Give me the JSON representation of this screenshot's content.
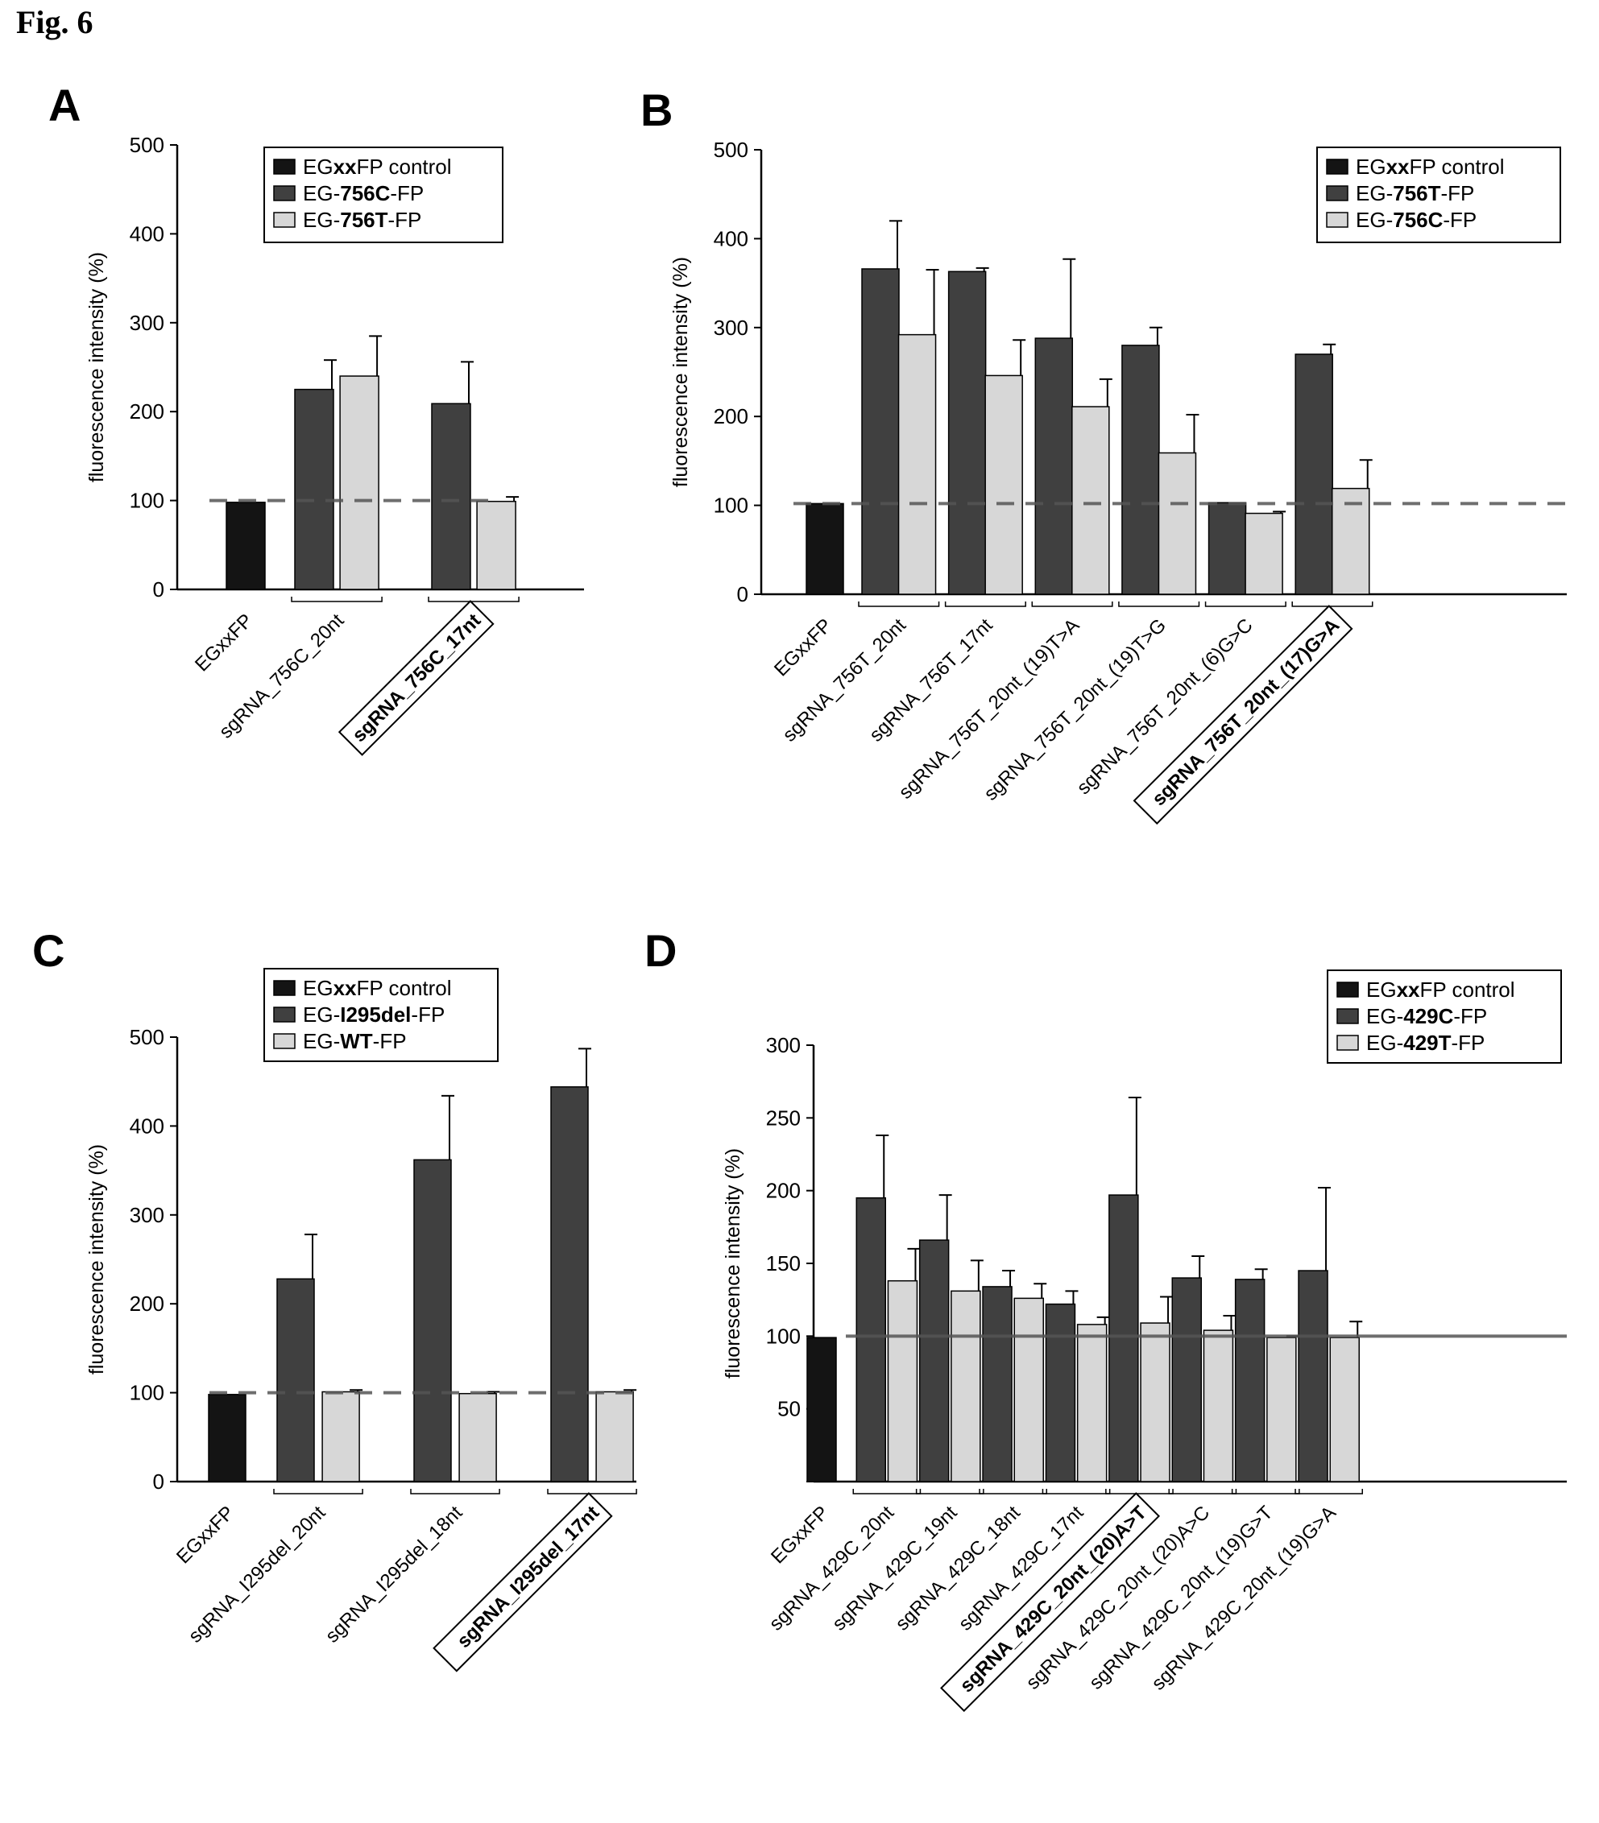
{
  "figure_label": "Fig. 6",
  "colors": {
    "black": "#141414",
    "dark": "#404040",
    "light": "#d7d7d7",
    "dash": "#555555"
  },
  "chart_data": [
    {
      "panel": "A",
      "type": "bar",
      "ylabel": "fluorescence intensity (%)",
      "ylim": [
        0,
        500
      ],
      "yticks": [
        0,
        100,
        200,
        300,
        400,
        500
      ],
      "reference_line": 100,
      "legend": [
        {
          "label_parts": [
            {
              "t": "EG",
              "b": false
            },
            {
              "t": "xx",
              "b": true
            },
            {
              "t": "FP control",
              "b": false
            }
          ],
          "color": "black"
        },
        {
          "label_parts": [
            {
              "t": "EG-",
              "b": false
            },
            {
              "t": "756C",
              "b": true
            },
            {
              "t": "-FP",
              "b": false
            }
          ],
          "color": "dark"
        },
        {
          "label_parts": [
            {
              "t": "EG-",
              "b": false
            },
            {
              "t": "756T",
              "b": true
            },
            {
              "t": "-FP",
              "b": false
            }
          ],
          "color": "light"
        }
      ],
      "groups": [
        {
          "label": "EGxxFP",
          "boxed": false,
          "bars": [
            {
              "color": "black",
              "value": 98,
              "err": 0
            }
          ]
        },
        {
          "label": "sgRNA_756C_20nt",
          "boxed": false,
          "bars": [
            {
              "color": "dark",
              "value": 225,
              "err": 33
            },
            {
              "color": "light",
              "value": 240,
              "err": 45
            }
          ]
        },
        {
          "label": "sgRNA_756C_17nt",
          "boxed": true,
          "bars": [
            {
              "color": "dark",
              "value": 209,
              "err": 47
            },
            {
              "color": "light",
              "value": 99,
              "err": 5
            }
          ]
        }
      ]
    },
    {
      "panel": "B",
      "type": "bar",
      "ylabel": "fluorescence intensity (%)",
      "ylim": [
        0,
        500
      ],
      "yticks": [
        0,
        100,
        200,
        300,
        400,
        500
      ],
      "reference_line": 102,
      "legend": [
        {
          "label_parts": [
            {
              "t": "EG",
              "b": false
            },
            {
              "t": "xx",
              "b": true
            },
            {
              "t": "FP control",
              "b": false
            }
          ],
          "color": "black"
        },
        {
          "label_parts": [
            {
              "t": "EG-",
              "b": false
            },
            {
              "t": "756T",
              "b": true
            },
            {
              "t": "-FP",
              "b": false
            }
          ],
          "color": "dark"
        },
        {
          "label_parts": [
            {
              "t": "EG-",
              "b": false
            },
            {
              "t": "756C",
              "b": true
            },
            {
              "t": "-FP",
              "b": false
            }
          ],
          "color": "light"
        }
      ],
      "groups": [
        {
          "label": "EGxxFP",
          "boxed": false,
          "bars": [
            {
              "color": "black",
              "value": 102,
              "err": 0
            }
          ]
        },
        {
          "label": "sgRNA_756T_20nt",
          "boxed": false,
          "bars": [
            {
              "color": "dark",
              "value": 366,
              "err": 54
            },
            {
              "color": "light",
              "value": 292,
              "err": 73
            }
          ]
        },
        {
          "label": "sgRNA_756T_17nt",
          "boxed": false,
          "bars": [
            {
              "color": "dark",
              "value": 363,
              "err": 4
            },
            {
              "color": "light",
              "value": 246,
              "err": 40
            }
          ]
        },
        {
          "label": "sgRNA_756T_20nt_(19)T>A",
          "boxed": false,
          "bars": [
            {
              "color": "dark",
              "value": 288,
              "err": 89
            },
            {
              "color": "light",
              "value": 211,
              "err": 31
            }
          ]
        },
        {
          "label": "sgRNA_756T_20nt_(19)T>G",
          "boxed": false,
          "bars": [
            {
              "color": "dark",
              "value": 280,
              "err": 20
            },
            {
              "color": "light",
              "value": 159,
              "err": 43
            }
          ]
        },
        {
          "label": "sgRNA_756T_20nt_(6)G>C",
          "boxed": false,
          "bars": [
            {
              "color": "dark",
              "value": 103,
              "err": 0
            },
            {
              "color": "light",
              "value": 91,
              "err": 2
            }
          ]
        },
        {
          "label": "sgRNA_756T_20nt_(17)G>A",
          "boxed": true,
          "bars": [
            {
              "color": "dark",
              "value": 270,
              "err": 11
            },
            {
              "color": "light",
              "value": 119,
              "err": 32
            }
          ]
        }
      ]
    },
    {
      "panel": "C",
      "type": "bar",
      "ylabel": "fluorescence intensity (%)",
      "ylim": [
        0,
        500
      ],
      "yticks": [
        0,
        100,
        200,
        300,
        400,
        500
      ],
      "reference_line": 100,
      "legend": [
        {
          "label_parts": [
            {
              "t": "EG",
              "b": false
            },
            {
              "t": "xx",
              "b": true
            },
            {
              "t": "FP control",
              "b": false
            }
          ],
          "color": "black"
        },
        {
          "label_parts": [
            {
              "t": "EG-",
              "b": false
            },
            {
              "t": "I295del",
              "b": true
            },
            {
              "t": "-FP",
              "b": false
            }
          ],
          "color": "dark"
        },
        {
          "label_parts": [
            {
              "t": "EG-",
              "b": false
            },
            {
              "t": "WT",
              "b": true
            },
            {
              "t": "-FP",
              "b": false
            }
          ],
          "color": "light"
        }
      ],
      "groups": [
        {
          "label": "EGxxFP",
          "boxed": false,
          "bars": [
            {
              "color": "black",
              "value": 98,
              "err": 0
            }
          ]
        },
        {
          "label": "sgRNA_I295del_20nt",
          "boxed": false,
          "bars": [
            {
              "color": "dark",
              "value": 228,
              "err": 50
            },
            {
              "color": "light",
              "value": 101,
              "err": 2
            }
          ]
        },
        {
          "label": "sgRNA_I295del_18nt",
          "boxed": false,
          "bars": [
            {
              "color": "dark",
              "value": 362,
              "err": 72
            },
            {
              "color": "light",
              "value": 99,
              "err": 2
            }
          ]
        },
        {
          "label": "sgRNA_I295del_17nt",
          "boxed": true,
          "bars": [
            {
              "color": "dark",
              "value": 444,
              "err": 43
            },
            {
              "color": "light",
              "value": 101,
              "err": 2
            }
          ]
        }
      ]
    },
    {
      "panel": "D",
      "type": "bar",
      "ylabel": "fluorescence intensity (%)",
      "ylim": [
        0,
        300
      ],
      "yticks": [
        50,
        100,
        150,
        200,
        250,
        300
      ],
      "reference_line": 100,
      "legend": [
        {
          "label_parts": [
            {
              "t": "EG",
              "b": false
            },
            {
              "t": "xx",
              "b": true
            },
            {
              "t": "FP control",
              "b": false
            }
          ],
          "color": "black"
        },
        {
          "label_parts": [
            {
              "t": "EG-",
              "b": false
            },
            {
              "t": "429C",
              "b": true
            },
            {
              "t": "-FP",
              "b": false
            }
          ],
          "color": "dark"
        },
        {
          "label_parts": [
            {
              "t": "EG-",
              "b": false
            },
            {
              "t": "429T",
              "b": true
            },
            {
              "t": "-FP",
              "b": false
            }
          ],
          "color": "light"
        }
      ],
      "groups": [
        {
          "label": "EGxxFP",
          "boxed": false,
          "bars": [
            {
              "color": "black",
              "value": 99,
              "err": 0
            }
          ]
        },
        {
          "label": "sgRNA_429C_20nt",
          "boxed": false,
          "bars": [
            {
              "color": "dark",
              "value": 195,
              "err": 43
            },
            {
              "color": "light",
              "value": 138,
              "err": 22
            }
          ]
        },
        {
          "label": "sgRNA_429C_19nt",
          "boxed": false,
          "bars": [
            {
              "color": "dark",
              "value": 166,
              "err": 31
            },
            {
              "color": "light",
              "value": 131,
              "err": 21
            }
          ]
        },
        {
          "label": "sgRNA_429C_18nt",
          "boxed": false,
          "bars": [
            {
              "color": "dark",
              "value": 134,
              "err": 11
            },
            {
              "color": "light",
              "value": 126,
              "err": 10
            }
          ]
        },
        {
          "label": "sgRNA_429C_17nt",
          "boxed": false,
          "bars": [
            {
              "color": "dark",
              "value": 122,
              "err": 9
            },
            {
              "color": "light",
              "value": 108,
              "err": 5
            }
          ]
        },
        {
          "label": "sgRNA_429C_20nt_(20)A>T",
          "boxed": true,
          "bars": [
            {
              "color": "dark",
              "value": 197,
              "err": 67
            },
            {
              "color": "light",
              "value": 109,
              "err": 18
            }
          ]
        },
        {
          "label": "sgRNA_429C_20nt_(20)A>C",
          "boxed": false,
          "bars": [
            {
              "color": "dark",
              "value": 140,
              "err": 15
            },
            {
              "color": "light",
              "value": 104,
              "err": 10
            }
          ]
        },
        {
          "label": "sgRNA_429C_20nt_(19)G>T",
          "boxed": false,
          "bars": [
            {
              "color": "dark",
              "value": 139,
              "err": 7
            },
            {
              "color": "light",
              "value": 99,
              "err": 1
            }
          ]
        },
        {
          "label": "sgRNA_429C_20nt_(19)G>A",
          "boxed": false,
          "bars": [
            {
              "color": "dark",
              "value": 145,
              "err": 57
            },
            {
              "color": "light",
              "value": 99,
              "err": 11
            }
          ]
        }
      ]
    }
  ]
}
